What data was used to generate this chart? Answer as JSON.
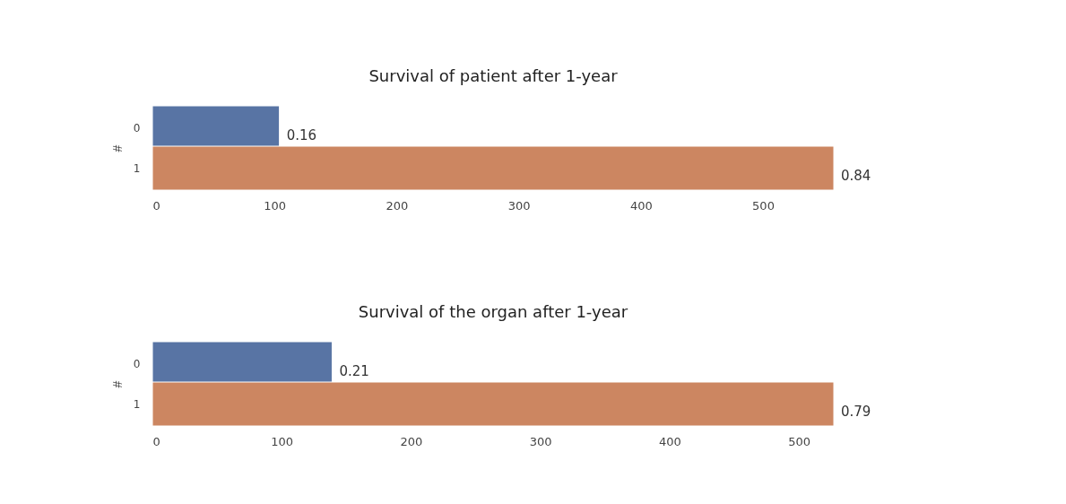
{
  "chart_data": [
    {
      "type": "bar",
      "orientation": "horizontal",
      "title": "Survival of patient after 1-year",
      "ylabel": "#",
      "categories": [
        "0",
        "1"
      ],
      "values": [
        104,
        558
      ],
      "colors": [
        "#5874a4",
        "#cc8661"
      ],
      "annotations": [
        {
          "text": "0.16",
          "x": 104,
          "y": "0"
        },
        {
          "text": "0.84",
          "x": 558,
          "y": "1"
        }
      ],
      "xlim": [
        0,
        558
      ],
      "xticks": [
        0,
        100,
        200,
        300,
        400,
        500
      ],
      "grid": false
    },
    {
      "type": "bar",
      "orientation": "horizontal",
      "title": "Survival of the organ after 1-year",
      "ylabel": "#",
      "categories": [
        "0",
        "1"
      ],
      "values": [
        139,
        527
      ],
      "colors": [
        "#5874a4",
        "#cc8661"
      ],
      "annotations": [
        {
          "text": "0.21",
          "x": 139,
          "y": "0"
        },
        {
          "text": "0.79",
          "x": 527,
          "y": "1"
        }
      ],
      "xlim": [
        0,
        527
      ],
      "xticks": [
        0,
        100,
        200,
        300,
        400,
        500
      ],
      "grid": false
    }
  ]
}
